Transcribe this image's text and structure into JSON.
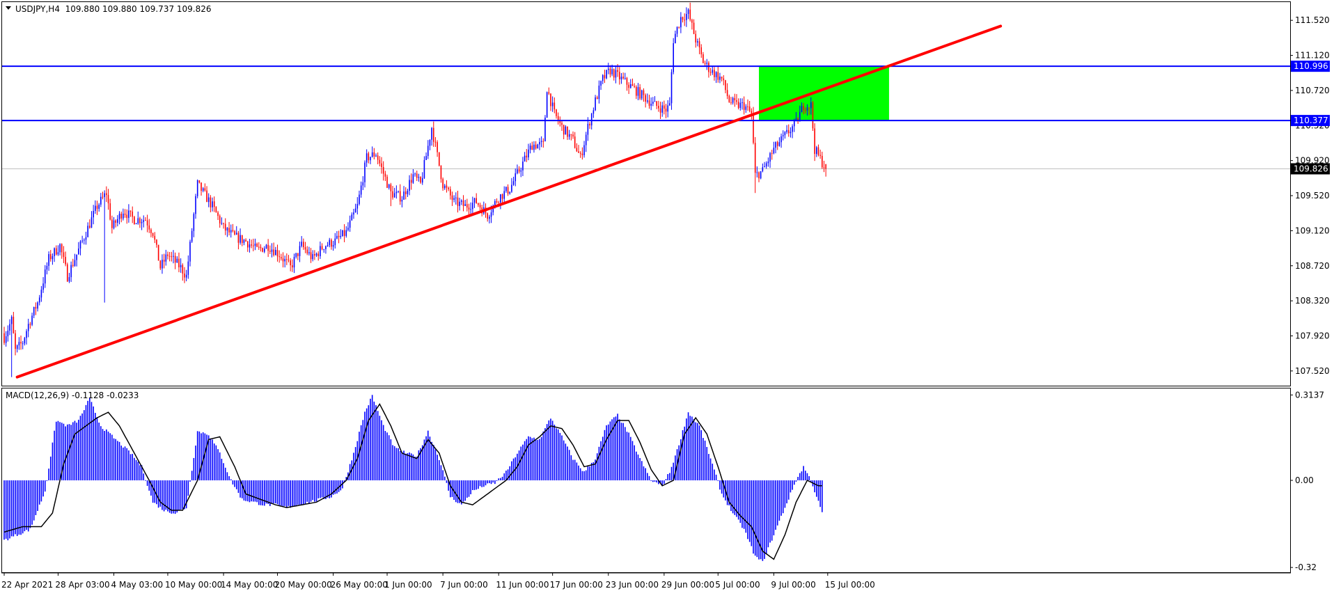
{
  "header": {
    "menu_icon": "triangle-down-icon",
    "symbol_line": "USDJPY,H4  109.880 109.880 109.737 109.826"
  },
  "chart_data": [
    {
      "type": "candlestick",
      "symbol": "USDJPY",
      "timeframe": "H4",
      "ohlc": {
        "open": 109.88,
        "high": 109.88,
        "low": 109.737,
        "close": 109.826
      },
      "ylim": [
        107.36,
        111.72
      ],
      "y_ticks": [
        "111.520",
        "111.120",
        "110.720",
        "110.320",
        "109.920",
        "109.520",
        "109.120",
        "108.720",
        "108.320",
        "107.920",
        "107.520"
      ],
      "x_ticks": [
        "22 Apr 2021",
        "28 Apr 03:00",
        "4 May 03:00",
        "10 May 00:00",
        "14 May 00:00",
        "20 May 00:00",
        "26 May 00:00",
        "1 Jun 00:00",
        "7 Jun 00:00",
        "11 Jun 00:00",
        "17 Jun 00:00",
        "23 Jun 00:00",
        "29 Jun 00:00",
        "5 Jul 00:00",
        "9 Jul 00:00",
        "15 Jul 00:00"
      ],
      "anchors": [
        [
          0,
          107.9
        ],
        [
          4,
          108.1
        ],
        [
          6,
          107.75
        ],
        [
          10,
          107.85
        ],
        [
          13,
          108.05
        ],
        [
          18,
          108.3
        ],
        [
          24,
          108.8
        ],
        [
          30,
          108.95
        ],
        [
          34,
          108.6
        ],
        [
          38,
          108.8
        ],
        [
          44,
          109.1
        ],
        [
          50,
          109.4
        ],
        [
          55,
          109.55
        ],
        [
          58,
          109.15
        ],
        [
          64,
          109.35
        ],
        [
          70,
          109.25
        ],
        [
          76,
          109.25
        ],
        [
          80,
          109.1
        ],
        [
          84,
          108.7
        ],
        [
          88,
          108.85
        ],
        [
          95,
          108.7
        ],
        [
          98,
          108.6
        ],
        [
          104,
          109.65
        ],
        [
          112,
          109.4
        ],
        [
          118,
          109.15
        ],
        [
          124,
          109.05
        ],
        [
          130,
          109.0
        ],
        [
          136,
          108.9
        ],
        [
          142,
          108.95
        ],
        [
          148,
          108.85
        ],
        [
          154,
          108.7
        ],
        [
          160,
          108.95
        ],
        [
          166,
          108.8
        ],
        [
          172,
          108.95
        ],
        [
          178,
          109.0
        ],
        [
          184,
          109.1
        ],
        [
          190,
          109.4
        ],
        [
          195,
          109.95
        ],
        [
          200,
          110.0
        ],
        [
          208,
          109.55
        ],
        [
          214,
          109.5
        ],
        [
          220,
          109.75
        ],
        [
          224,
          109.65
        ],
        [
          230,
          110.3
        ],
        [
          236,
          109.65
        ],
        [
          242,
          109.45
        ],
        [
          248,
          109.4
        ],
        [
          254,
          109.45
        ],
        [
          260,
          109.3
        ],
        [
          266,
          109.5
        ],
        [
          272,
          109.6
        ],
        [
          278,
          109.85
        ],
        [
          284,
          110.1
        ],
        [
          290,
          110.1
        ],
        [
          292,
          110.75
        ],
        [
          296,
          110.45
        ],
        [
          300,
          110.3
        ],
        [
          306,
          110.15
        ],
        [
          310,
          109.95
        ],
        [
          314,
          110.3
        ],
        [
          318,
          110.6
        ],
        [
          322,
          110.85
        ],
        [
          326,
          110.95
        ],
        [
          332,
          110.85
        ],
        [
          338,
          110.75
        ],
        [
          344,
          110.65
        ],
        [
          350,
          110.55
        ],
        [
          356,
          110.5
        ],
        [
          358,
          110.55
        ],
        [
          360,
          111.3
        ],
        [
          364,
          111.55
        ],
        [
          368,
          111.6
        ],
        [
          372,
          111.3
        ],
        [
          376,
          111.05
        ],
        [
          380,
          110.95
        ],
        [
          386,
          110.85
        ],
        [
          390,
          110.6
        ],
        [
          394,
          110.55
        ],
        [
          398,
          110.55
        ],
        [
          402,
          110.45
        ],
        [
          404,
          109.75
        ],
        [
          408,
          109.8
        ],
        [
          414,
          110.05
        ],
        [
          420,
          110.2
        ],
        [
          426,
          110.35
        ],
        [
          430,
          110.55
        ],
        [
          434,
          110.55
        ],
        [
          436,
          110.05
        ],
        [
          440,
          109.9
        ],
        [
          442,
          109.83
        ]
      ],
      "lows": [
        [
          4,
          107.45
        ],
        [
          54,
          108.3
        ],
        [
          96,
          108.55
        ],
        [
          170,
          108.8
        ],
        [
          208,
          109.4
        ],
        [
          258,
          109.3
        ],
        [
          404,
          109.55
        ]
      ],
      "horizontal_lines": [
        {
          "value": 110.996,
          "label": "110.996",
          "color": "#0000ff"
        },
        {
          "value": 110.377,
          "label": "110.377",
          "color": "#0000ff"
        }
      ],
      "last_price": {
        "value": 109.826,
        "label": "109.826"
      },
      "trendline": {
        "points": [
          [
            7,
            107.45
          ],
          [
            476,
            111.0
          ]
        ],
        "extend_to": 536,
        "color": "#ff0000"
      },
      "zone": {
        "x_range": [
          406,
          476
        ],
        "y_range": [
          110.377,
          110.996
        ],
        "color": "#00ff00"
      },
      "colors": {
        "up": "#0000ff",
        "down": "#ff0000",
        "grid_line": "#c0c0c0"
      }
    },
    {
      "type": "bar",
      "title": "MACD(12,26,9) -0.1128 -0.0233",
      "ylim": [
        -0.335,
        0.335
      ],
      "y_ticks": [
        "0.3137",
        "0.00",
        "-0.32"
      ],
      "macd_anchors": [
        [
          0,
          -0.22
        ],
        [
          14,
          -0.18
        ],
        [
          22,
          -0.04
        ],
        [
          28,
          0.22
        ],
        [
          34,
          0.2
        ],
        [
          40,
          0.22
        ],
        [
          46,
          0.3
        ],
        [
          52,
          0.2
        ],
        [
          60,
          0.15
        ],
        [
          68,
          0.1
        ],
        [
          74,
          0.05
        ],
        [
          80,
          -0.08
        ],
        [
          86,
          -0.11
        ],
        [
          92,
          -0.12
        ],
        [
          98,
          -0.1
        ],
        [
          104,
          0.18
        ],
        [
          110,
          0.17
        ],
        [
          116,
          0.1
        ],
        [
          122,
          0.0
        ],
        [
          128,
          -0.07
        ],
        [
          134,
          -0.08
        ],
        [
          140,
          -0.09
        ],
        [
          146,
          -0.09
        ],
        [
          152,
          -0.1
        ],
        [
          158,
          -0.09
        ],
        [
          164,
          -0.08
        ],
        [
          170,
          -0.07
        ],
        [
          176,
          -0.06
        ],
        [
          182,
          -0.03
        ],
        [
          188,
          0.1
        ],
        [
          194,
          0.25
        ],
        [
          198,
          0.31
        ],
        [
          204,
          0.2
        ],
        [
          210,
          0.12
        ],
        [
          216,
          0.1
        ],
        [
          222,
          0.09
        ],
        [
          228,
          0.18
        ],
        [
          234,
          0.08
        ],
        [
          240,
          -0.06
        ],
        [
          246,
          -0.09
        ],
        [
          252,
          -0.04
        ],
        [
          258,
          -0.02
        ],
        [
          264,
          -0.01
        ],
        [
          270,
          0.03
        ],
        [
          276,
          0.1
        ],
        [
          282,
          0.16
        ],
        [
          288,
          0.15
        ],
        [
          294,
          0.23
        ],
        [
          300,
          0.16
        ],
        [
          306,
          0.08
        ],
        [
          312,
          0.03
        ],
        [
          318,
          0.08
        ],
        [
          324,
          0.2
        ],
        [
          330,
          0.24
        ],
        [
          336,
          0.17
        ],
        [
          342,
          0.08
        ],
        [
          348,
          0.0
        ],
        [
          354,
          -0.02
        ],
        [
          358,
          0.03
        ],
        [
          362,
          0.11
        ],
        [
          368,
          0.25
        ],
        [
          374,
          0.2
        ],
        [
          380,
          0.08
        ],
        [
          386,
          -0.05
        ],
        [
          392,
          -0.12
        ],
        [
          398,
          -0.18
        ],
        [
          404,
          -0.28
        ],
        [
          408,
          -0.3
        ],
        [
          414,
          -0.2
        ],
        [
          420,
          -0.1
        ],
        [
          426,
          0.0
        ],
        [
          430,
          0.05
        ],
        [
          434,
          0.0
        ],
        [
          440,
          -0.12
        ]
      ],
      "signal_anchors": [
        [
          0,
          -0.19
        ],
        [
          10,
          -0.17
        ],
        [
          20,
          -0.17
        ],
        [
          26,
          -0.12
        ],
        [
          32,
          0.06
        ],
        [
          38,
          0.17
        ],
        [
          44,
          0.2
        ],
        [
          50,
          0.23
        ],
        [
          56,
          0.25
        ],
        [
          62,
          0.2
        ],
        [
          70,
          0.1
        ],
        [
          78,
          0.0
        ],
        [
          84,
          -0.08
        ],
        [
          90,
          -0.11
        ],
        [
          96,
          -0.11
        ],
        [
          104,
          0.0
        ],
        [
          110,
          0.15
        ],
        [
          116,
          0.16
        ],
        [
          124,
          0.05
        ],
        [
          130,
          -0.05
        ],
        [
          138,
          -0.07
        ],
        [
          146,
          -0.09
        ],
        [
          152,
          -0.1
        ],
        [
          160,
          -0.09
        ],
        [
          168,
          -0.08
        ],
        [
          176,
          -0.05
        ],
        [
          184,
          0.0
        ],
        [
          190,
          0.08
        ],
        [
          196,
          0.22
        ],
        [
          202,
          0.28
        ],
        [
          208,
          0.2
        ],
        [
          214,
          0.1
        ],
        [
          222,
          0.08
        ],
        [
          228,
          0.15
        ],
        [
          234,
          0.1
        ],
        [
          240,
          -0.02
        ],
        [
          246,
          -0.08
        ],
        [
          252,
          -0.09
        ],
        [
          258,
          -0.06
        ],
        [
          264,
          -0.03
        ],
        [
          270,
          0.0
        ],
        [
          276,
          0.05
        ],
        [
          282,
          0.13
        ],
        [
          288,
          0.16
        ],
        [
          294,
          0.2
        ],
        [
          300,
          0.19
        ],
        [
          306,
          0.13
        ],
        [
          312,
          0.05
        ],
        [
          318,
          0.06
        ],
        [
          324,
          0.15
        ],
        [
          330,
          0.22
        ],
        [
          336,
          0.22
        ],
        [
          342,
          0.14
        ],
        [
          348,
          0.04
        ],
        [
          354,
          -0.02
        ],
        [
          360,
          0.0
        ],
        [
          366,
          0.17
        ],
        [
          372,
          0.23
        ],
        [
          378,
          0.17
        ],
        [
          384,
          0.05
        ],
        [
          390,
          -0.08
        ],
        [
          396,
          -0.13
        ],
        [
          402,
          -0.17
        ],
        [
          408,
          -0.26
        ],
        [
          414,
          -0.29
        ],
        [
          420,
          -0.2
        ],
        [
          426,
          -0.08
        ],
        [
          432,
          0.0
        ],
        [
          438,
          -0.02
        ],
        [
          440,
          -0.02
        ]
      ],
      "colors": {
        "histogram": "#0000ff",
        "signal": "#000000"
      }
    }
  ]
}
